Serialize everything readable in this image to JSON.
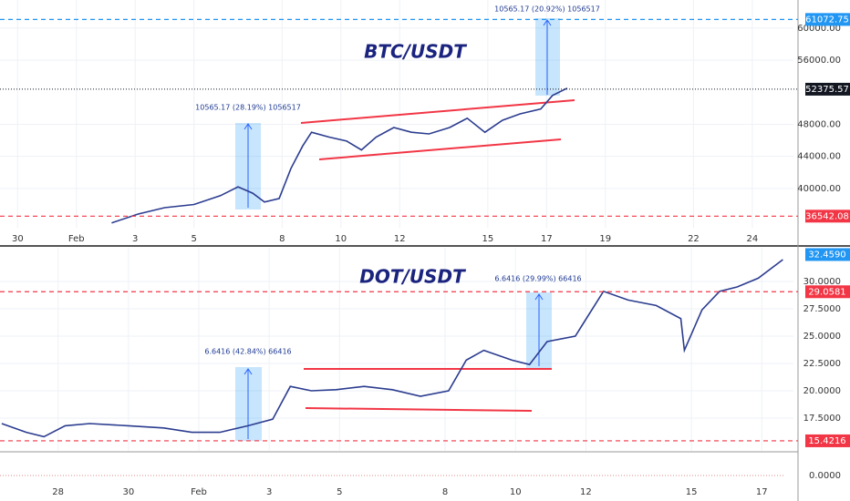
{
  "chart_data": [
    {
      "type": "line",
      "title": "BTC/USDT",
      "color": "#2b3c8f",
      "annotations": [
        "10565.17 (28.19%) 1056517",
        "10565.17 (20.92%) 1056517"
      ],
      "x": [
        2.2,
        3.1,
        4.0,
        5.0,
        5.9,
        6.5,
        7.0,
        7.4,
        7.9,
        8.3,
        8.7,
        9.0,
        9.6,
        10.2,
        10.7,
        11.2,
        11.8,
        12.4,
        13.0,
        13.7,
        14.3,
        14.9,
        15.5,
        16.1,
        16.8,
        17.2,
        17.7
      ],
      "values": [
        35700,
        36800,
        37600,
        38000,
        39100,
        40200,
        39400,
        38300,
        38750,
        42500,
        45300,
        47000,
        46400,
        45900,
        44800,
        46400,
        47600,
        47000,
        46800,
        47600,
        48750,
        47000,
        48500,
        49300,
        49900,
        51600,
        52500
      ],
      "xlim": [
        -1.6,
        25.4
      ],
      "ylim": [
        35100,
        63500
      ],
      "xticks": [
        {
          "value": -1,
          "label": "30"
        },
        {
          "value": 1,
          "label": "Feb"
        },
        3,
        5,
        8,
        10,
        12,
        15,
        17,
        19,
        22,
        24
      ],
      "yticks": [
        {
          "value": 40000,
          "label": "40000.00"
        },
        {
          "value": 44000,
          "label": "44000.00"
        },
        {
          "value": 48000,
          "label": "48000.00"
        },
        {
          "value": 56000,
          "label": "56000.00"
        },
        {
          "value": 60000,
          "label": "60000.00"
        }
      ],
      "levels": [
        {
          "value": 61072.75,
          "style": "dashed",
          "color": "#2196f3"
        },
        {
          "value": 52375.57,
          "style": "dotted",
          "color": "#131722"
        },
        {
          "value": 36542.08,
          "style": "dashed",
          "color": "#f23645"
        }
      ],
      "grid": true
    },
    {
      "type": "line",
      "title": "DOT/USDT",
      "color": "#2b3c8f",
      "annotations": [
        "6.6416 (42.84%) 66416",
        "6.6416 (29.99%) 66416"
      ],
      "x": [
        -4.6,
        -3.9,
        -3.4,
        -2.8,
        -2.1,
        -1.0,
        0.0,
        0.8,
        1.6,
        2.4,
        3.1,
        3.6,
        4.2,
        4.9,
        5.7,
        6.5,
        7.3,
        8.1,
        8.6,
        9.1,
        9.9,
        10.4,
        10.9,
        11.7,
        12.5,
        13.2,
        14.0,
        14.7,
        14.8,
        15.3,
        15.8,
        16.3,
        16.9,
        17.6
      ],
      "values": [
        17.0,
        16.2,
        15.8,
        16.8,
        17.0,
        16.8,
        16.6,
        16.2,
        16.2,
        16.8,
        17.4,
        20.4,
        20.0,
        20.1,
        20.4,
        20.1,
        19.5,
        20.0,
        22.8,
        23.7,
        22.8,
        22.4,
        24.5,
        25.0,
        29.1,
        28.3,
        27.8,
        26.6,
        23.7,
        27.4,
        29.1,
        29.5,
        30.3,
        32.0
      ],
      "xlim": [
        -4.65,
        17.9
      ],
      "ylim": [
        14.5,
        33.08
      ],
      "xticks": [
        {
          "value": -3,
          "label": "28"
        },
        {
          "value": -1,
          "label": "30"
        },
        {
          "value": 1,
          "label": "Feb"
        },
        3,
        5,
        8,
        10,
        12,
        15,
        17
      ],
      "yticks": [
        {
          "value": 17.5,
          "label": "17.5000"
        },
        {
          "value": 20,
          "label": "20.0000"
        },
        {
          "value": 22.5,
          "label": "22.5000"
        },
        {
          "value": 25,
          "label": "25.0000"
        },
        {
          "value": 27.5,
          "label": "27.5000"
        },
        {
          "value": 30,
          "label": "30.0000"
        }
      ],
      "subpane_yticks": [
        {
          "value": 0,
          "label": "0.0000"
        }
      ],
      "levels": [
        {
          "value": 32.459,
          "label": "32.4590",
          "style": "none",
          "color": "#2196f3"
        },
        {
          "value": 29.0581,
          "style": "dashed",
          "color": "#f23645"
        },
        {
          "value": 15.4216,
          "style": "dashed",
          "color": "#f23645"
        }
      ],
      "grid": true
    }
  ]
}
